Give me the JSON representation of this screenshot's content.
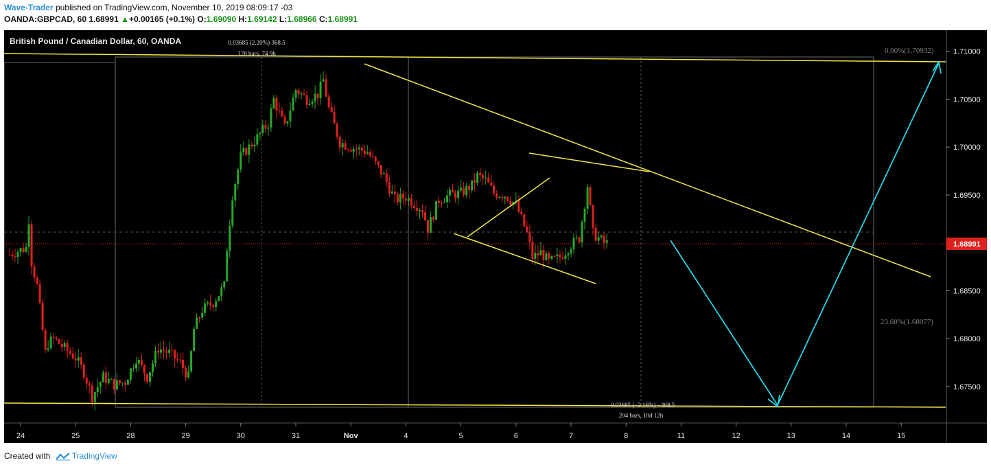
{
  "header": {
    "author": "Wave-Trader",
    "published_text": "published on TradingView.com, November 10, 2019 08:09:17 -03",
    "symbol": "OANDA:GBPCAD, 60",
    "last": "1.68991",
    "change": "+0.00165 (+0.1%)",
    "o_label": "O:",
    "o_value": "1.69090",
    "h_label": "H:",
    "h_value": "1.69142",
    "l_label": "L:",
    "l_value": "1.68966",
    "c_label": "C:",
    "c_value": "1.68991"
  },
  "footer": {
    "created_with": "Created with",
    "brand": "TradingView"
  },
  "colors": {
    "background": "#000000",
    "up": "#26a826",
    "down": "#e0201c",
    "trendline": "#f2e64a",
    "projection": "#27d3e6",
    "price_label": "#e0201c",
    "axis_text": "#e6e6e6",
    "fib_text": "#808080"
  },
  "chart_data": {
    "type": "candlestick",
    "title": "British Pound / Canadian Dollar, 60, OANDA",
    "ylim": [
      1.6712,
      1.7122
    ],
    "y_ticks": [
      1.71,
      1.705,
      1.7,
      1.695,
      1.69,
      1.685,
      1.68,
      1.675
    ],
    "y_tick_labels": [
      "1.71000",
      "1.70500",
      "1.70000",
      "1.69500",
      "1.69000",
      "1.68500",
      "1.68000",
      "1.67500"
    ],
    "last_price": 1.68991,
    "last_price_label": "1.68991",
    "x_ticks": [
      {
        "label": "24",
        "d": 0
      },
      {
        "label": "25",
        "d": 1
      },
      {
        "label": "28",
        "d": 2
      },
      {
        "label": "29",
        "d": 3
      },
      {
        "label": "30",
        "d": 4
      },
      {
        "label": "31",
        "d": 5
      },
      {
        "label": "Nov",
        "d": 6
      },
      {
        "label": "4",
        "d": 7
      },
      {
        "label": "5",
        "d": 8
      },
      {
        "label": "6",
        "d": 9
      },
      {
        "label": "7",
        "d": 10
      },
      {
        "label": "8",
        "d": 11
      },
      {
        "label": "11",
        "d": 12
      },
      {
        "label": "12",
        "d": 13
      },
      {
        "label": "13",
        "d": 14
      },
      {
        "label": "14",
        "d": 15
      },
      {
        "label": "15",
        "d": 16
      }
    ],
    "price_path": [
      [
        -0.2,
        1.6888
      ],
      [
        0.1,
        1.6895
      ],
      [
        0.15,
        1.6925
      ],
      [
        0.2,
        1.688
      ],
      [
        0.3,
        1.6855
      ],
      [
        0.45,
        1.6785
      ],
      [
        0.5,
        1.6795
      ],
      [
        0.6,
        1.68
      ],
      [
        0.8,
        1.679
      ],
      [
        1.0,
        1.678
      ],
      [
        1.15,
        1.6765
      ],
      [
        1.3,
        1.674
      ],
      [
        1.5,
        1.676
      ],
      [
        1.7,
        1.6752
      ],
      [
        1.9,
        1.6755
      ],
      [
        2.1,
        1.678
      ],
      [
        2.3,
        1.676
      ],
      [
        2.5,
        1.679
      ],
      [
        2.7,
        1.6785
      ],
      [
        2.9,
        1.6775
      ],
      [
        3.05,
        1.676
      ],
      [
        3.15,
        1.681
      ],
      [
        3.3,
        1.683
      ],
      [
        3.5,
        1.6838
      ],
      [
        3.7,
        1.6855
      ],
      [
        3.75,
        1.6895
      ],
      [
        3.85,
        1.695
      ],
      [
        4.0,
        1.699
      ],
      [
        4.3,
        1.701
      ],
      [
        4.5,
        1.7025
      ],
      [
        4.6,
        1.705
      ],
      [
        4.8,
        1.702
      ],
      [
        5.0,
        1.706
      ],
      [
        5.2,
        1.705
      ],
      [
        5.4,
        1.7055
      ],
      [
        5.5,
        1.707
      ],
      [
        5.6,
        1.704
      ],
      [
        5.8,
        1.7005
      ],
      [
        6.0,
        1.7
      ],
      [
        6.3,
        1.6995
      ],
      [
        6.6,
        1.697
      ],
      [
        6.8,
        1.6945
      ],
      [
        7.0,
        1.6948
      ],
      [
        7.3,
        1.6935
      ],
      [
        7.4,
        1.6915
      ],
      [
        7.6,
        1.6945
      ],
      [
        7.8,
        1.695
      ],
      [
        8.0,
        1.6952
      ],
      [
        8.2,
        1.696
      ],
      [
        8.3,
        1.697
      ],
      [
        8.45,
        1.6965
      ],
      [
        8.6,
        1.6952
      ],
      [
        8.8,
        1.695
      ],
      [
        9.0,
        1.694
      ],
      [
        9.2,
        1.691
      ],
      [
        9.3,
        1.6885
      ],
      [
        9.45,
        1.689
      ],
      [
        9.6,
        1.688
      ],
      [
        9.8,
        1.6885
      ],
      [
        10.0,
        1.6898
      ],
      [
        10.15,
        1.6905
      ],
      [
        10.3,
        1.696
      ],
      [
        10.4,
        1.691
      ],
      [
        10.6,
        1.69
      ],
      [
        10.7,
        1.6899
      ]
    ],
    "annotations": {
      "symbol_title": "British Pound / Canadian Dollar, 60, OANDA",
      "range_top_1": "0.03685 (2.20%) 368.5",
      "range_top_2": "128 bars, 74 9h",
      "range_bottom_1": "−0.03685 (−2.16%) −368.5",
      "range_bottom_2": "204 bars, 10d 12h",
      "fib_0": "0.00%(1.70932)",
      "fib_236": "23.60%(1.68077)"
    }
  }
}
